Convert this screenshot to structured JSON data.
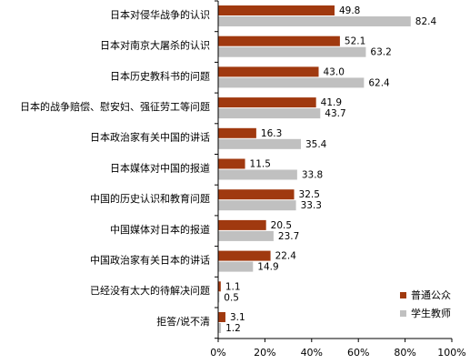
{
  "chart_data": {
    "type": "bar",
    "orientation": "horizontal",
    "categories": [
      "日本对侵华战争的认识",
      "日本对南京大屠杀的认识",
      "日本历史教科书的问题",
      "日本的战争赔偿、慰安妇、强征劳工等问题",
      "日本政治家有关中国的讲话",
      "日本媒体对中国的报道",
      "中国的历史认识和教育问题",
      "中国媒体对日本的报道",
      "中国政治家有关日本的讲话",
      "已经没有太大的待解决问题",
      "拒答/说不清"
    ],
    "series": [
      {
        "name": "普通公众",
        "color": "#a0390f",
        "values": [
          49.8,
          52.1,
          43.0,
          41.9,
          16.3,
          11.5,
          32.5,
          20.5,
          22.4,
          1.1,
          3.1
        ]
      },
      {
        "name": "学生教师",
        "color": "#c0c0c0",
        "values": [
          82.4,
          63.2,
          62.4,
          43.7,
          35.4,
          33.8,
          33.3,
          23.7,
          14.9,
          0.5,
          1.2
        ]
      }
    ],
    "xlim": [
      0,
      100
    ],
    "x_ticks": [
      "0%",
      "20%",
      "40%",
      "60%",
      "80%",
      "100%"
    ],
    "value_labels": [
      [
        "49.8",
        "52.1",
        "43.0",
        "41.9",
        "16.3",
        "11.5",
        "32.5",
        "20.5",
        "22.4",
        "1.1",
        "3.1"
      ],
      [
        "82.4",
        "63.2",
        "62.4",
        "43.7",
        "35.4",
        "33.8",
        "33.3",
        "23.7",
        "14.9",
        "0.5",
        "1.2"
      ]
    ],
    "legend_position": "bottom-right",
    "grid": false
  }
}
